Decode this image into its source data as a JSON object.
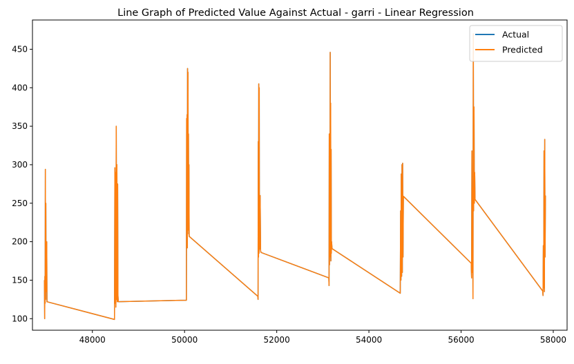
{
  "chart_data": {
    "type": "line",
    "title": "Line Graph of Predicted Value Against Actual - garri  - Linear Regression",
    "xlabel": "",
    "ylabel": "",
    "xlim": [
      46700,
      58300
    ],
    "ylim": [
      85,
      488
    ],
    "x_ticks": [
      48000,
      50000,
      52000,
      54000,
      56000,
      58000
    ],
    "y_ticks": [
      100,
      150,
      200,
      250,
      300,
      350,
      400,
      450
    ],
    "grid": false,
    "legend_position": "top-right",
    "series": [
      {
        "name": "Actual",
        "color": "#1f77b4",
        "x": [
          46960,
          46965,
          46970,
          46975,
          46980,
          46985,
          46990,
          46995,
          47000,
          47005,
          47010,
          47015,
          48480,
          48488,
          48495,
          48502,
          48510,
          48518,
          48525,
          48532,
          48540,
          48548,
          48555,
          48562,
          50040,
          50045,
          50050,
          50055,
          50060,
          50065,
          50070,
          50075,
          50080,
          50085,
          50090,
          50095,
          50100,
          51590,
          51595,
          51600,
          51605,
          51610,
          51615,
          51620,
          51625,
          51630,
          51635,
          51640,
          51650,
          51660,
          53130,
          53135,
          53140,
          53145,
          53150,
          53155,
          53160,
          53165,
          53170,
          53175,
          53180,
          53185,
          53190,
          53200,
          54680,
          54688,
          54695,
          54702,
          54710,
          54718,
          54725,
          54732,
          54740,
          54748,
          56220,
          56228,
          56235,
          56242,
          56250,
          56258,
          56265,
          56272,
          56280,
          56288,
          56295,
          56302,
          57770,
          57778,
          57785,
          57792,
          57800,
          57808,
          57815,
          57822,
          57830
        ],
        "values": [
          150,
          100,
          155,
          120,
          294,
          125,
          250,
          140,
          180,
          135,
          200,
          122,
          99,
          296,
          120,
          290,
          115,
          350,
          125,
          300,
          122,
          275,
          130,
          122,
          124,
          360,
          200,
          365,
          192,
          425,
          210,
          420,
          230,
          340,
          215,
          300,
          207,
          129,
          125,
          330,
          180,
          405,
          185,
          400,
          190,
          250,
          195,
          260,
          188,
          186,
          153,
          143,
          340,
          170,
          300,
          180,
          446,
          190,
          380,
          175,
          320,
          185,
          200,
          191,
          133,
          240,
          150,
          288,
          155,
          300,
          160,
          302,
          180,
          259,
          172,
          153,
          318,
          160,
          270,
          126,
          470,
          240,
          375,
          250,
          290,
          255,
          136,
          130,
          195,
          140,
          318,
          135,
          333,
          180,
          260
        ],
        "z_order": "below"
      },
      {
        "name": "Predicted",
        "color": "#ff7f0e",
        "x": [
          46960,
          46965,
          46970,
          46975,
          46980,
          46985,
          46990,
          46995,
          47000,
          47005,
          47010,
          47015,
          48480,
          48488,
          48495,
          48502,
          48510,
          48518,
          48525,
          48532,
          48540,
          48548,
          48555,
          48562,
          50040,
          50045,
          50050,
          50055,
          50060,
          50065,
          50070,
          50075,
          50080,
          50085,
          50090,
          50095,
          50100,
          51590,
          51595,
          51600,
          51605,
          51610,
          51615,
          51620,
          51625,
          51630,
          51635,
          51640,
          51650,
          51660,
          53130,
          53135,
          53140,
          53145,
          53150,
          53155,
          53160,
          53165,
          53170,
          53175,
          53180,
          53185,
          53190,
          53200,
          54680,
          54688,
          54695,
          54702,
          54710,
          54718,
          54725,
          54732,
          54740,
          54748,
          56220,
          56228,
          56235,
          56242,
          56250,
          56258,
          56265,
          56272,
          56280,
          56288,
          56295,
          56302,
          57770,
          57778,
          57785,
          57792,
          57800,
          57808,
          57815,
          57822,
          57830
        ],
        "values": [
          150,
          100,
          155,
          120,
          294,
          125,
          250,
          140,
          180,
          135,
          200,
          122,
          99,
          296,
          120,
          290,
          115,
          350,
          125,
          300,
          122,
          275,
          130,
          122,
          124,
          360,
          200,
          365,
          192,
          425,
          210,
          420,
          230,
          340,
          215,
          300,
          207,
          129,
          125,
          330,
          180,
          405,
          185,
          400,
          190,
          250,
          195,
          260,
          188,
          186,
          153,
          143,
          340,
          170,
          300,
          180,
          446,
          190,
          380,
          175,
          320,
          185,
          200,
          191,
          133,
          240,
          150,
          288,
          155,
          300,
          160,
          302,
          180,
          259,
          172,
          153,
          318,
          160,
          270,
          126,
          470,
          240,
          375,
          250,
          290,
          255,
          136,
          130,
          195,
          140,
          318,
          135,
          333,
          180,
          260
        ],
        "z_order": "above"
      }
    ]
  }
}
